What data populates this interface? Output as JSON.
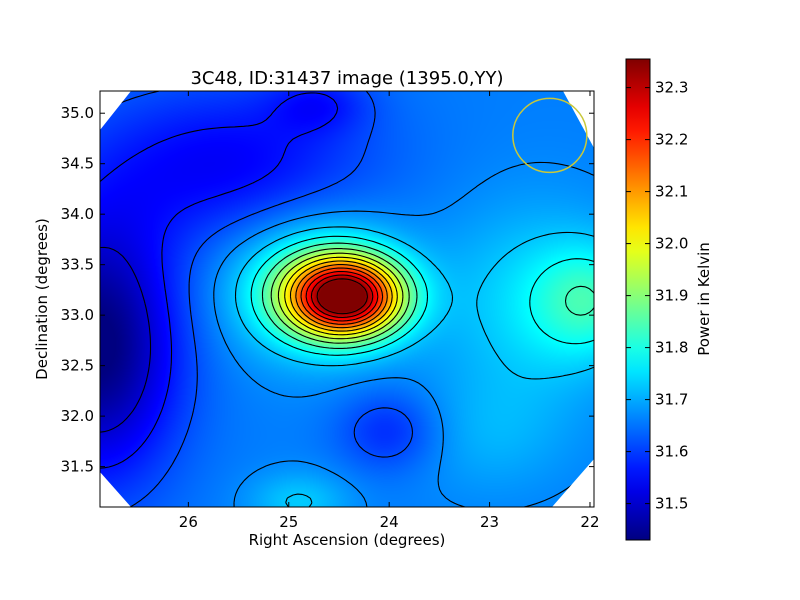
{
  "chart_data": {
    "type": "heatmap",
    "title": "3C48, ID:31437 image (1395.0,YY)",
    "xlabel": "Right Ascension (degrees)",
    "ylabel": "Declination (degrees)",
    "xlim": [
      26.88,
      21.96
    ],
    "ylim": [
      31.1,
      35.22
    ],
    "x_ticks": [
      26,
      25,
      24,
      23,
      22
    ],
    "y_ticks": [
      31.5,
      32.0,
      32.5,
      33.0,
      33.5,
      34.0,
      34.5,
      35.0
    ],
    "x_tick_labels": [
      "26",
      "25",
      "24",
      "23",
      "22"
    ],
    "y_tick_labels": [
      "31.5",
      "32.0",
      "32.5",
      "33.0",
      "33.5",
      "34.0",
      "34.5",
      "35.0"
    ],
    "colorbar": {
      "label": "Power in Kelvin",
      "range": [
        31.43,
        32.355
      ],
      "ticks": [
        31.5,
        31.6,
        31.7,
        31.8,
        31.9,
        32.0,
        32.1,
        32.2,
        32.3
      ],
      "tick_labels": [
        "31.5",
        "31.6",
        "31.7",
        "31.8",
        "31.9",
        "32.0",
        "32.1",
        "32.2",
        "32.3"
      ],
      "colormap": "jet"
    },
    "peak": {
      "ra": 24.44,
      "dec": 33.18,
      "value": 32.35
    },
    "secondary_features": [
      {
        "ra": 26.9,
        "dec": 32.7,
        "value": 31.45,
        "kind": "minimum"
      },
      {
        "ra": 22.0,
        "dec": 33.15,
        "value": 31.9,
        "kind": "local maximum"
      },
      {
        "ra": 24.9,
        "dec": 31.15,
        "value": 31.75,
        "kind": "local maximum"
      },
      {
        "ra": 24.0,
        "dec": 31.85,
        "value": 31.6,
        "kind": "local minimum"
      },
      {
        "ra": 24.7,
        "dec": 35.1,
        "value": 31.5,
        "kind": "local minimum"
      }
    ],
    "beam_marker": {
      "ra": 22.4,
      "dec": 34.78,
      "color": "#c8c83a"
    },
    "contours": "black",
    "grid": false
  }
}
